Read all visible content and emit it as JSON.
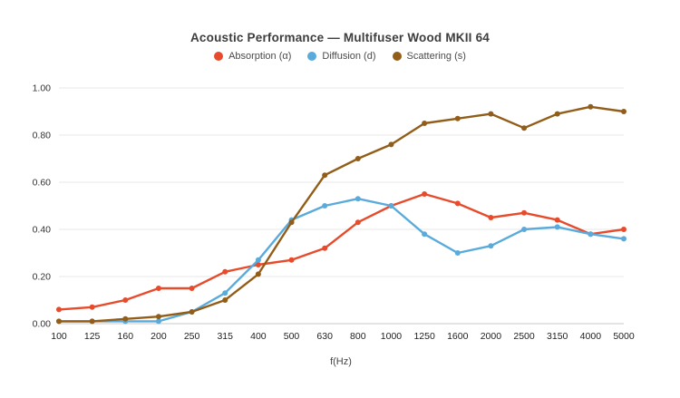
{
  "chart_data": {
    "type": "line",
    "title": "Acoustic Performance — Multifuser Wood MKII 64",
    "xlabel": "f(Hz)",
    "ylabel": "",
    "ylim": [
      0,
      1.0
    ],
    "y_ticks": [
      1.0,
      0.8,
      0.6,
      0.4,
      0.2,
      0.0
    ],
    "y_tick_labels": [
      "1.00",
      "0.80",
      "0.60",
      "0.40",
      "0.20",
      "0.00"
    ],
    "categories": [
      "100",
      "125",
      "160",
      "200",
      "250",
      "315",
      "400",
      "500",
      "630",
      "800",
      "1000",
      "1250",
      "1600",
      "2000",
      "2500",
      "3150",
      "4000",
      "5000"
    ],
    "grid": true,
    "legend_position": "top",
    "series": [
      {
        "name": "Absorption (α)",
        "color": "#e74b2c",
        "values": [
          0.06,
          0.07,
          0.1,
          0.15,
          0.15,
          0.22,
          0.25,
          0.27,
          0.32,
          0.43,
          0.5,
          0.55,
          0.51,
          0.45,
          0.47,
          0.44,
          0.38,
          0.4
        ]
      },
      {
        "name": "Diffusion (d)",
        "color": "#5aabdc",
        "values": [
          0.01,
          0.01,
          0.01,
          0.01,
          0.05,
          0.13,
          0.27,
          0.44,
          0.5,
          0.53,
          0.5,
          0.38,
          0.3,
          0.33,
          0.4,
          0.41,
          0.38,
          0.36
        ]
      },
      {
        "name": "Scattering (s)",
        "color": "#925d18",
        "values": [
          0.01,
          0.01,
          0.02,
          0.03,
          0.05,
          0.1,
          0.21,
          0.43,
          0.63,
          0.7,
          0.76,
          0.85,
          0.87,
          0.89,
          0.83,
          0.89,
          0.92,
          0.9
        ]
      }
    ]
  }
}
